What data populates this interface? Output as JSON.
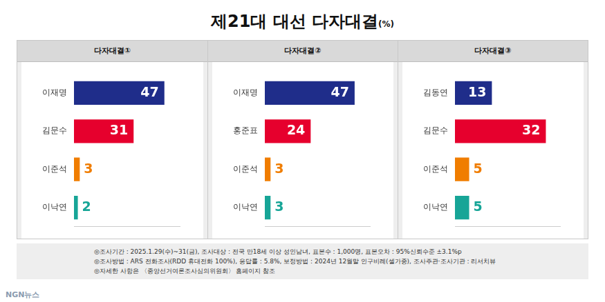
{
  "title": "제21대 대선 다자대결",
  "unit": "(%)",
  "notes": [
    "◎조사기간 : 2025.1.29(수)~31(금), 조사대상 : 전국 만18세 이상 성인남녀, 표본수 : 1,000명, 표본오차 : 95%신뢰수준 ±3.1%p",
    "◎조사방법 : ARS 전화조사(RDD 휴대전화 100%), 응답률 : 5.8%, 보정방법 : 2024년 12월말 인구비례(셀가중), 조사주관·조사기관 : 리서치뷰",
    "◎자세한 사항은 〈중앙선거여론조사심의위원회〉 홈페이지 참조"
  ],
  "watermark": "NGN뉴스",
  "chart_data": [
    {
      "type": "bar",
      "title": "다자대결①",
      "orientation": "horizontal",
      "categories": [
        "이재명",
        "김문수",
        "이준석",
        "이낙연"
      ],
      "values": [
        47,
        31,
        3,
        2
      ],
      "colors": [
        "#1f2d8a",
        "#e6002d",
        "#f07d00",
        "#17a597"
      ],
      "xlim": [
        0,
        55
      ],
      "grid": false,
      "data_labels": true,
      "tick_labels": "y"
    },
    {
      "type": "bar",
      "title": "다자대결②",
      "orientation": "horizontal",
      "categories": [
        "이재명",
        "홍준표",
        "이준석",
        "이낙연"
      ],
      "values": [
        47,
        24,
        3,
        3
      ],
      "colors": [
        "#1f2d8a",
        "#e6002d",
        "#f07d00",
        "#17a597"
      ],
      "xlim": [
        0,
        55
      ],
      "grid": false,
      "data_labels": true,
      "tick_labels": "y"
    },
    {
      "type": "bar",
      "title": "다자대결③",
      "orientation": "horizontal",
      "categories": [
        "김동연",
        "김문수",
        "이준석",
        "이낙연"
      ],
      "values": [
        13,
        32,
        5,
        5
      ],
      "colors": [
        "#1f2d8a",
        "#e6002d",
        "#f07d00",
        "#17a597"
      ],
      "xlim": [
        0,
        37
      ],
      "grid": false,
      "data_labels": true,
      "tick_labels": "y"
    }
  ]
}
